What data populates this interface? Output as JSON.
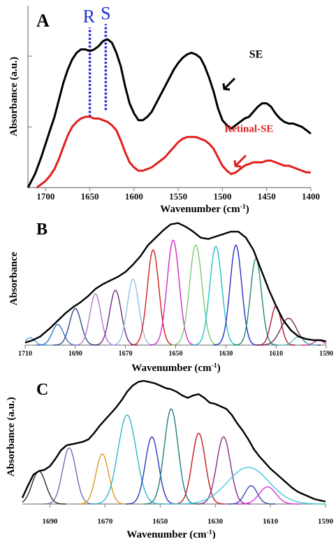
{
  "chart_data": [
    {
      "type": "line",
      "panel_label": "A",
      "xlabel": "Wavenumber (cm",
      "xlabel_sup": "-1",
      "xlabel_close": ")",
      "ylabel": "Absorbance (a.u.)",
      "xlim": [
        1720,
        1400
      ],
      "ylim": [
        0,
        1.08
      ],
      "xticks": [
        1700,
        1650,
        1600,
        1550,
        1500,
        1450,
        1400
      ],
      "grid": false,
      "series": [
        {
          "name": "SE",
          "color": "#000000",
          "x": [
            1720,
            1712,
            1705,
            1700,
            1695,
            1690,
            1685,
            1680,
            1675,
            1670,
            1665,
            1660,
            1655,
            1650,
            1645,
            1640,
            1635,
            1630,
            1625,
            1620,
            1615,
            1610,
            1605,
            1600,
            1595,
            1590,
            1585,
            1580,
            1575,
            1570,
            1565,
            1560,
            1555,
            1550,
            1545,
            1540,
            1535,
            1530,
            1525,
            1520,
            1515,
            1510,
            1505,
            1500,
            1495,
            1490,
            1485,
            1480,
            1475,
            1470,
            1465,
            1460,
            1455,
            1450,
            1445,
            1440,
            1435,
            1430,
            1425,
            1420,
            1415,
            1410,
            1405,
            1400
          ],
          "y": [
            0.0,
            0.08,
            0.18,
            0.26,
            0.34,
            0.42,
            0.52,
            0.62,
            0.7,
            0.76,
            0.8,
            0.82,
            0.82,
            0.81,
            0.82,
            0.84,
            0.87,
            0.88,
            0.86,
            0.8,
            0.72,
            0.6,
            0.5,
            0.44,
            0.4,
            0.4,
            0.42,
            0.45,
            0.5,
            0.55,
            0.6,
            0.65,
            0.7,
            0.74,
            0.77,
            0.79,
            0.8,
            0.79,
            0.77,
            0.72,
            0.65,
            0.57,
            0.47,
            0.4,
            0.37,
            0.35,
            0.37,
            0.39,
            0.41,
            0.42,
            0.45,
            0.48,
            0.5,
            0.5,
            0.48,
            0.44,
            0.41,
            0.39,
            0.38,
            0.38,
            0.37,
            0.36,
            0.34,
            0.32
          ]
        },
        {
          "name": "Retinal-SE",
          "color": "#e0201f",
          "x": [
            1710,
            1705,
            1700,
            1695,
            1690,
            1685,
            1680,
            1675,
            1670,
            1665,
            1660,
            1655,
            1650,
            1645,
            1640,
            1635,
            1630,
            1625,
            1620,
            1615,
            1610,
            1605,
            1600,
            1595,
            1590,
            1585,
            1580,
            1575,
            1570,
            1565,
            1560,
            1555,
            1550,
            1545,
            1540,
            1535,
            1530,
            1525,
            1520,
            1515,
            1510,
            1505,
            1500,
            1495,
            1490,
            1485,
            1480,
            1475,
            1470,
            1465,
            1460,
            1455,
            1450,
            1445,
            1440,
            1435,
            1430,
            1425,
            1420,
            1415,
            1410,
            1405,
            1400
          ],
          "y": [
            0.0,
            0.02,
            0.04,
            0.07,
            0.11,
            0.17,
            0.24,
            0.31,
            0.36,
            0.39,
            0.41,
            0.42,
            0.42,
            0.41,
            0.41,
            0.4,
            0.39,
            0.37,
            0.34,
            0.28,
            0.21,
            0.15,
            0.12,
            0.1,
            0.1,
            0.11,
            0.12,
            0.14,
            0.16,
            0.18,
            0.21,
            0.24,
            0.27,
            0.29,
            0.3,
            0.3,
            0.3,
            0.29,
            0.28,
            0.26,
            0.23,
            0.18,
            0.13,
            0.1,
            0.08,
            0.09,
            0.11,
            0.13,
            0.14,
            0.15,
            0.15,
            0.15,
            0.16,
            0.16,
            0.15,
            0.14,
            0.13,
            0.13,
            0.12,
            0.11,
            0.1,
            0.09,
            0.09
          ]
        }
      ],
      "annotations": [
        {
          "text": "SE",
          "x": 1462,
          "y": 0.77,
          "color": "#000000"
        },
        {
          "text": "Retinal-SE",
          "x": 1470,
          "y": 0.33,
          "color": "#e0201f"
        },
        {
          "text": "R",
          "x": 1651,
          "y": 0.98,
          "color": "#1f2fd0"
        },
        {
          "text": "S",
          "x": 1632,
          "y": 1.0,
          "color": "#1f2fd0"
        }
      ],
      "vlines": [
        {
          "x": 1650,
          "from": 0.42,
          "to": 0.95,
          "color": "#1f2fd0",
          "style": "dotted"
        },
        {
          "x": 1632,
          "from": 0.46,
          "to": 0.97,
          "color": "#1f2fd0",
          "style": "dotted"
        }
      ]
    },
    {
      "type": "line",
      "panel_label": "B",
      "xlabel": "Wavenumber (cm",
      "xlabel_sup": "-1",
      "xlabel_close": ")",
      "ylabel": "Absorbance",
      "xlim": [
        1710,
        1590
      ],
      "ylim": [
        0,
        1.05
      ],
      "xticks": [
        1710,
        1690,
        1670,
        1650,
        1630,
        1610,
        1590
      ],
      "grid": false,
      "envelope_color": "#000000",
      "envelope": {
        "x": [
          1710,
          1707,
          1704,
          1700,
          1697,
          1694,
          1691,
          1688,
          1685,
          1682,
          1679,
          1676,
          1673,
          1670,
          1667,
          1664,
          1661,
          1658,
          1655,
          1652,
          1649,
          1646,
          1643,
          1640,
          1637,
          1634,
          1631,
          1628,
          1625,
          1622,
          1619,
          1616,
          1613,
          1610,
          1607,
          1604,
          1601,
          1598,
          1595,
          1592,
          1590
        ],
        "y": [
          0.02,
          0.04,
          0.07,
          0.14,
          0.2,
          0.26,
          0.31,
          0.35,
          0.4,
          0.46,
          0.5,
          0.53,
          0.56,
          0.6,
          0.66,
          0.73,
          0.82,
          0.88,
          0.94,
          0.99,
          1.0,
          0.97,
          0.93,
          0.88,
          0.87,
          0.89,
          0.91,
          0.93,
          0.93,
          0.88,
          0.78,
          0.62,
          0.46,
          0.32,
          0.2,
          0.12,
          0.07,
          0.05,
          0.04,
          0.04,
          0.03
        ]
      },
      "components": [
        {
          "center": 1708,
          "height": 0.06,
          "sigma": 1.8,
          "color": "#4fa8d8"
        },
        {
          "center": 1697,
          "height": 0.17,
          "sigma": 2.2,
          "color": "#3a74c4"
        },
        {
          "center": 1690,
          "height": 0.3,
          "sigma": 2.3,
          "color": "#2d4c86"
        },
        {
          "center": 1682,
          "height": 0.42,
          "sigma": 2.2,
          "color": "#b27ac9"
        },
        {
          "center": 1674,
          "height": 0.45,
          "sigma": 2.3,
          "color": "#6b2f7d"
        },
        {
          "center": 1667,
          "height": 0.54,
          "sigma": 2.3,
          "color": "#8fbfe8"
        },
        {
          "center": 1659,
          "height": 0.78,
          "sigma": 2.3,
          "color": "#d21c1c"
        },
        {
          "center": 1651,
          "height": 0.86,
          "sigma": 2.4,
          "color": "#d428c8"
        },
        {
          "center": 1642,
          "height": 0.82,
          "sigma": 2.5,
          "color": "#7cc96e"
        },
        {
          "center": 1634,
          "height": 0.81,
          "sigma": 2.4,
          "color": "#26c0c7"
        },
        {
          "center": 1626,
          "height": 0.82,
          "sigma": 2.3,
          "color": "#2a2ec8"
        },
        {
          "center": 1618,
          "height": 0.71,
          "sigma": 2.2,
          "color": "#1f8a73"
        },
        {
          "center": 1610,
          "height": 0.32,
          "sigma": 2.0,
          "color": "#b01f35"
        },
        {
          "center": 1605,
          "height": 0.22,
          "sigma": 3.2,
          "color": "#6d2a52"
        },
        {
          "center": 1601,
          "height": 0.07,
          "sigma": 2.0,
          "color": "#5fc2c8"
        },
        {
          "center": 1593,
          "height": 0.04,
          "sigma": 1.8,
          "color": "#c23aa8"
        }
      ]
    },
    {
      "type": "line",
      "panel_label": "C",
      "xlabel": "Wavenumber (cm",
      "xlabel_sup": "-1",
      "xlabel_close": ")",
      "ylabel": "Absorbance (a.u.)",
      "xlim": [
        1700,
        1590
      ],
      "ylim": [
        0,
        1.05
      ],
      "xticks": [
        1690,
        1670,
        1650,
        1630,
        1610,
        1590
      ],
      "grid": false,
      "envelope_color": "#000000",
      "envelope": {
        "x": [
          1700,
          1698,
          1696,
          1694,
          1692,
          1690,
          1688,
          1686,
          1684,
          1682,
          1680,
          1678,
          1676,
          1674,
          1672,
          1670,
          1668,
          1666,
          1664,
          1662,
          1660,
          1658,
          1656,
          1654,
          1652,
          1650,
          1648,
          1646,
          1644,
          1642,
          1640,
          1638,
          1636,
          1634,
          1632,
          1630,
          1628,
          1626,
          1624,
          1622,
          1620,
          1618,
          1616,
          1614,
          1612,
          1610,
          1608,
          1606,
          1604,
          1602,
          1600,
          1598,
          1596,
          1594,
          1592,
          1590
        ],
        "y": [
          0.05,
          0.15,
          0.24,
          0.27,
          0.28,
          0.31,
          0.37,
          0.44,
          0.48,
          0.49,
          0.5,
          0.51,
          0.53,
          0.58,
          0.64,
          0.69,
          0.74,
          0.79,
          0.85,
          0.92,
          0.97,
          1.0,
          1.01,
          1.0,
          0.99,
          0.97,
          0.95,
          0.94,
          0.92,
          0.89,
          0.87,
          0.89,
          0.9,
          0.87,
          0.83,
          0.82,
          0.8,
          0.78,
          0.73,
          0.66,
          0.6,
          0.53,
          0.45,
          0.39,
          0.34,
          0.29,
          0.25,
          0.21,
          0.17,
          0.13,
          0.1,
          0.08,
          0.06,
          0.04,
          0.03,
          0.02
        ]
      },
      "components": [
        {
          "center": 1694,
          "height": 0.27,
          "sigma": 2.5,
          "color": "#2a2a2a"
        },
        {
          "center": 1683,
          "height": 0.46,
          "sigma": 2.4,
          "color": "#6b6fa8"
        },
        {
          "center": 1671,
          "height": 0.41,
          "sigma": 2.3,
          "color": "#d99a1c"
        },
        {
          "center": 1662,
          "height": 0.73,
          "sigma": 3.3,
          "color": "#2fb6cf"
        },
        {
          "center": 1653,
          "height": 0.55,
          "sigma": 2.4,
          "color": "#2a3ab8"
        },
        {
          "center": 1646,
          "height": 0.78,
          "sigma": 2.5,
          "color": "#1f7f7a"
        },
        {
          "center": 1636,
          "height": 0.58,
          "sigma": 2.4,
          "color": "#c21c1c"
        },
        {
          "center": 1627,
          "height": 0.55,
          "sigma": 2.5,
          "color": "#8a2a86"
        },
        {
          "center": 1618,
          "height": 0.3,
          "sigma": 7.5,
          "color": "#3ec9df"
        },
        {
          "center": 1617,
          "height": 0.15,
          "sigma": 2.2,
          "color": "#3b4bb8"
        },
        {
          "center": 1611,
          "height": 0.14,
          "sigma": 3.0,
          "color": "#d23ad2"
        }
      ]
    }
  ]
}
